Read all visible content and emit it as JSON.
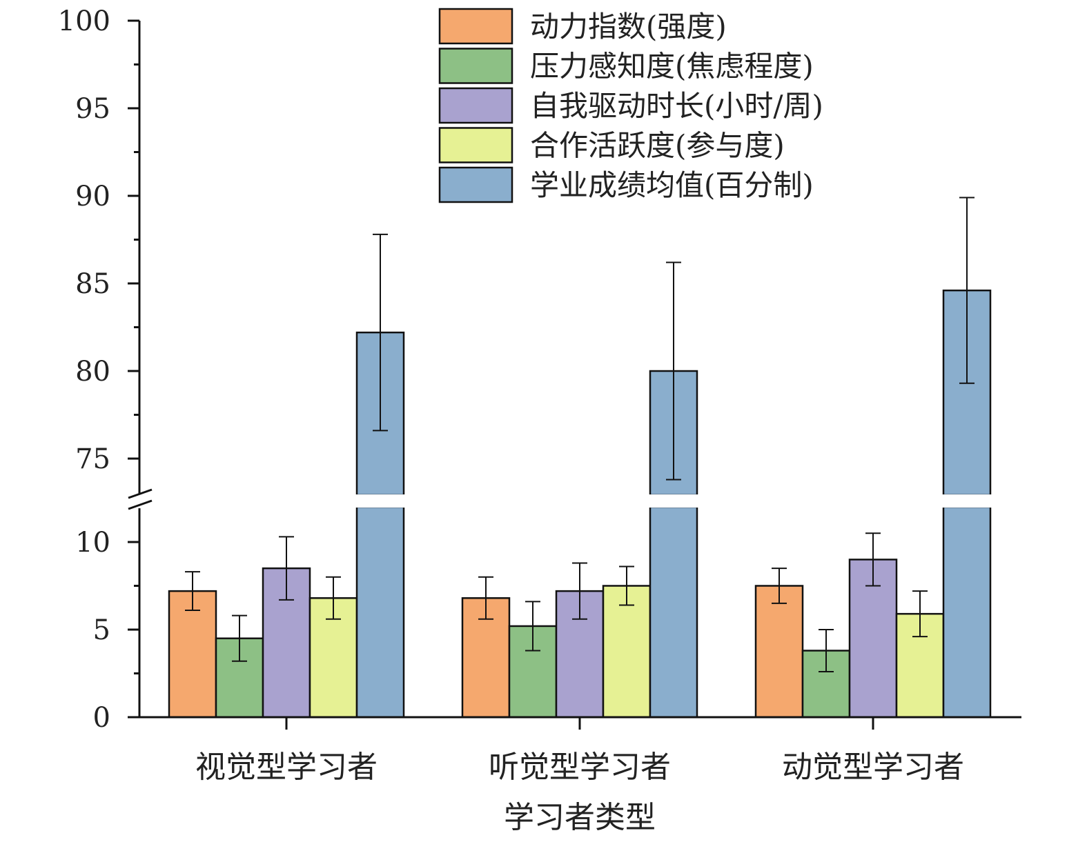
{
  "chart_data": {
    "type": "bar",
    "title": "",
    "xlabel": "学习者类型",
    "ylabel": "",
    "y_axis_break": {
      "lower_range": [
        0,
        12.5
      ],
      "upper_range": [
        72.9,
        100
      ]
    },
    "yticks_lower": [
      0,
      5,
      10
    ],
    "yticks_upper": [
      75,
      80,
      85,
      90,
      95,
      100
    ],
    "grid": false,
    "legend_placement": "top-right",
    "categories": [
      "视觉型学习者",
      "听觉型学习者",
      "动觉型学习者"
    ],
    "series": [
      {
        "name": "动力指数(强度)",
        "color": "#f5a86e",
        "values": [
          7.2,
          6.8,
          7.5
        ],
        "errors": [
          1.1,
          1.2,
          1.0
        ]
      },
      {
        "name": "压力感知度(焦虑程度)",
        "color": "#8dc085",
        "values": [
          4.5,
          5.2,
          3.8
        ],
        "errors": [
          1.3,
          1.4,
          1.2
        ]
      },
      {
        "name": "自我驱动时长(小时/周)",
        "color": "#a9a2cf",
        "values": [
          8.5,
          7.2,
          9.0
        ],
        "errors": [
          1.8,
          1.6,
          1.5
        ]
      },
      {
        "name": "合作活跃度(参与度)",
        "color": "#e6f194",
        "values": [
          6.8,
          7.5,
          5.9
        ],
        "errors": [
          1.2,
          1.1,
          1.3
        ]
      },
      {
        "name": "学业成绩均值(百分制)",
        "color": "#8aaecd",
        "values": [
          82.2,
          80.0,
          84.6
        ],
        "errors": [
          5.6,
          6.2,
          5.3
        ]
      }
    ]
  }
}
